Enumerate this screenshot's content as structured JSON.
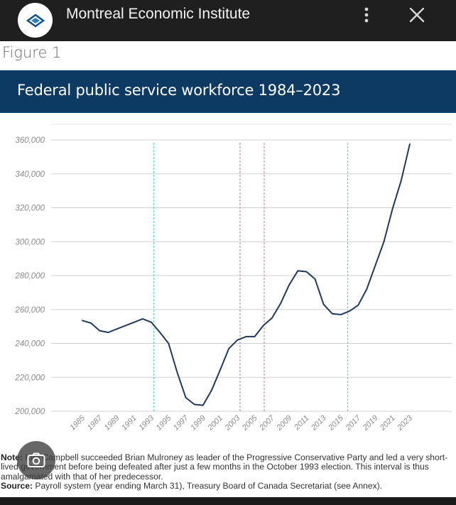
{
  "app_bar": {
    "title": "Montreal Economic Institute",
    "logo_icon": "mei-logo-icon",
    "menu_icon": "more-vert-icon",
    "close_icon": "close-icon"
  },
  "figure_label": "Figure 1",
  "chart_data": {
    "type": "line",
    "title": "Federal public service workforce 1984–2023",
    "xlabel": "",
    "ylabel": "",
    "ylim": [
      200000,
      360000
    ],
    "xlim": [
      1984,
      2024
    ],
    "y_ticks": [
      200000,
      220000,
      240000,
      260000,
      280000,
      300000,
      320000,
      340000,
      360000
    ],
    "y_tick_labels": [
      "200,000",
      "220,000",
      "240,000",
      "260,000",
      "280,000",
      "300,000",
      "320,000",
      "340,000",
      "360,000"
    ],
    "x_tick_labels": [
      "1985",
      "1987",
      "1989",
      "1991",
      "1993",
      "1995",
      "1997",
      "1999",
      "2001",
      "2003",
      "2005",
      "2007",
      "2009",
      "2011",
      "2013",
      "2015",
      "2017",
      "2019",
      "2021",
      "2023"
    ],
    "grid": "horizontal",
    "series": [
      {
        "color": "#1f3a5f",
        "x": [
          1985,
          1986,
          1987,
          1988,
          1989,
          1990,
          1991,
          1992,
          1993,
          1994,
          1995,
          1996,
          1997,
          1998,
          1999,
          2000,
          2001,
          2002,
          2003,
          2004,
          2005,
          2006,
          2007,
          2008,
          2009,
          2010,
          2011,
          2012,
          2013,
          2014,
          2015,
          2016,
          2017,
          2018,
          2019,
          2020,
          2021,
          2022,
          2023
        ],
        "values": [
          253500,
          252000,
          247500,
          246500,
          248500,
          250500,
          252500,
          254500,
          252500,
          246500,
          240000,
          223000,
          208000,
          204000,
          203500,
          212500,
          224500,
          237000,
          242000,
          244000,
          244000,
          250500,
          255000,
          263500,
          274500,
          282800,
          282300,
          278000,
          263000,
          257500,
          257000,
          259000,
          262500,
          272000,
          286000,
          300000,
          319500,
          336000,
          357500
        ]
      }
    ],
    "vertical_markers": [
      {
        "x": 1993.3,
        "color": "#4fc3d9"
      },
      {
        "x": 2003.3,
        "color": "#c47a8c"
      },
      {
        "x": 2006.1,
        "color": "#e8707e"
      },
      {
        "x": 2015.8,
        "color": "#4fc3d9"
      }
    ]
  },
  "notes": {
    "note_label": "Note:",
    "note_text": " Kim Campbell succeeded Brian Mulroney as leader of the Progressive Conservative Party and led a very short-lived government before being defeated after just a few months in the October 1993 election. This interval is thus amalgamated with that of her predecessor.",
    "source_label": "Source:",
    "source_text": " Payroll system (year ending March 31), Treasury Board of Canada Secretariat (see Annex)."
  },
  "overlay": {
    "lens_icon": "google-lens-camera-icon"
  }
}
